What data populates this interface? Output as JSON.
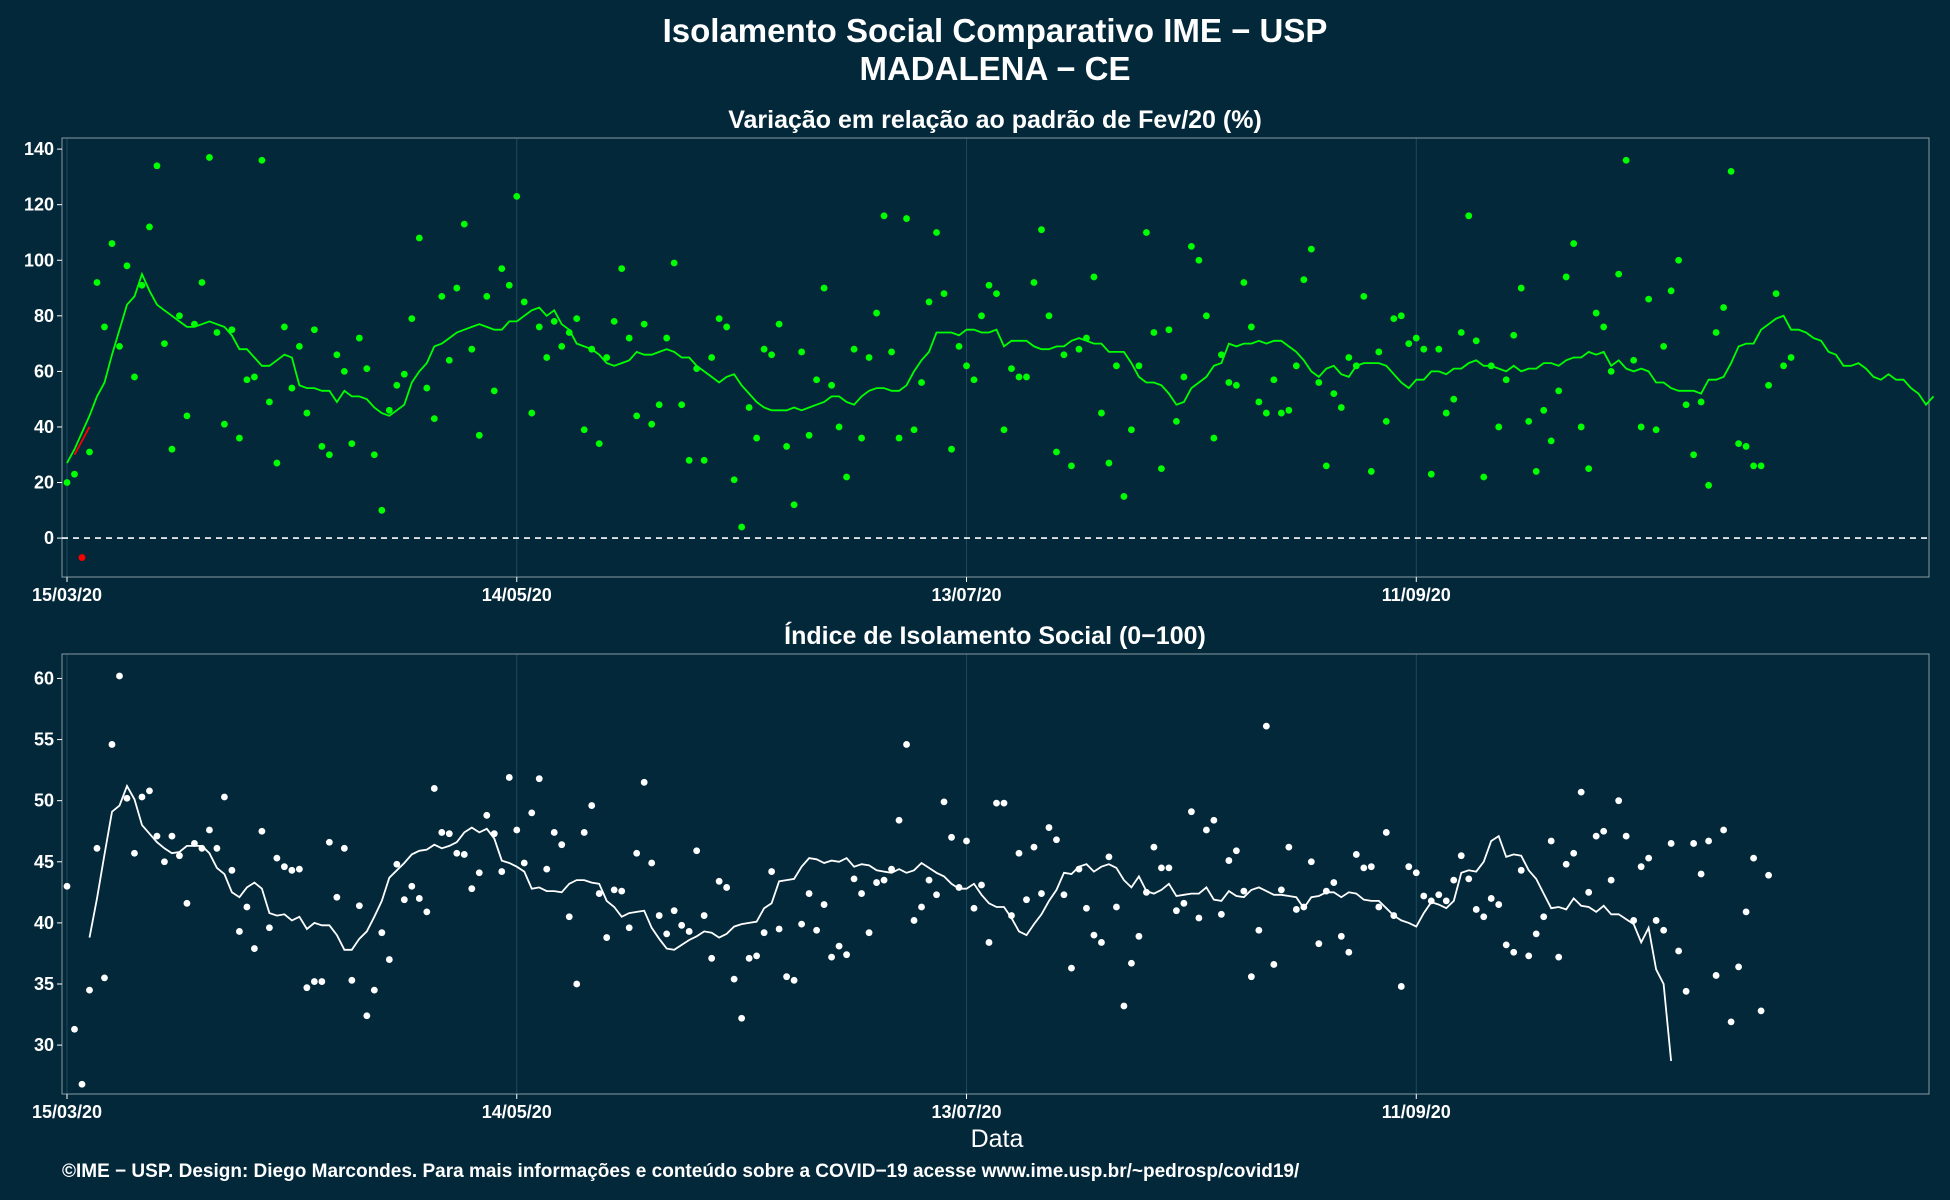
{
  "title": "Isolamento Social Comparativo IME − USP",
  "subtitle": "MADALENA − CE",
  "xlabel": "Data",
  "footer": "©IME − USP. Design: Diego Marcondes. Para mais informações e conteúdo sobre a COVID−19 acesse www.ime.usp.br/~pedrosp/covid19/",
  "colors": {
    "background": "#03283a",
    "green": "#00ff00",
    "white": "#ffffff",
    "red": "#ff0000"
  },
  "chart_data": [
    {
      "type": "scatter",
      "title": "Variação em relação ao padrão de Fev/20 (%)",
      "x_ticks": [
        {
          "offset": 0,
          "label": "15/03/20"
        },
        {
          "offset": 60,
          "label": "14/05/20"
        },
        {
          "offset": 120,
          "label": "13/07/20"
        },
        {
          "offset": 180,
          "label": "11/09/20"
        }
      ],
      "ylim": [
        -14,
        144
      ],
      "y_ticks": [
        0,
        20,
        40,
        60,
        80,
        100,
        120,
        140
      ],
      "reference_line": 0,
      "series": [
        {
          "kind": "points",
          "color": "#00ff00",
          "start_offset": 0,
          "values": [
            20,
            23,
            -7,
            31,
            92,
            76,
            106,
            69,
            98,
            58,
            91,
            112,
            134,
            70,
            32,
            80,
            44,
            77,
            92,
            137,
            74,
            41,
            75,
            36,
            57,
            58,
            136,
            49,
            27,
            76,
            54,
            69,
            45,
            75,
            33,
            30,
            66,
            60,
            34,
            72,
            61,
            30,
            10,
            46,
            55,
            59,
            79,
            108,
            54,
            43,
            87,
            64,
            90,
            113,
            68,
            37,
            87,
            53,
            97,
            91,
            123,
            85,
            45,
            76,
            65,
            78,
            69,
            74,
            79,
            39,
            68,
            34,
            65,
            78,
            97,
            72,
            44,
            77,
            41,
            48,
            72,
            99,
            48,
            28,
            61,
            28,
            65,
            79,
            76,
            21,
            4,
            47,
            36,
            68,
            66,
            77,
            33,
            12,
            67,
            37,
            57,
            90,
            55,
            40,
            22,
            68,
            36,
            65,
            81,
            116,
            67,
            36,
            115,
            39,
            56,
            85,
            110,
            88,
            32,
            69,
            62,
            57,
            80,
            91,
            88,
            39,
            61,
            58,
            58,
            92,
            111,
            80,
            31,
            66,
            26,
            68,
            72,
            94,
            45,
            27,
            62,
            15,
            39,
            62,
            110,
            74,
            25,
            75,
            42,
            58,
            105,
            100,
            80,
            36,
            66,
            56,
            55,
            92,
            76,
            49,
            45,
            57,
            45,
            46,
            62,
            93,
            104,
            56,
            26,
            52,
            47,
            65,
            62,
            87,
            24,
            67,
            42,
            79,
            80,
            70,
            72,
            68,
            23,
            68,
            45,
            50,
            74,
            116,
            71,
            22,
            62,
            40,
            57,
            73,
            90,
            42,
            24,
            46,
            35,
            53,
            94,
            106,
            40,
            25,
            81,
            76,
            60,
            95,
            136,
            64,
            40,
            86,
            39,
            69,
            89,
            100,
            48,
            30,
            49,
            19,
            74,
            83,
            132,
            34,
            33,
            26,
            26,
            55,
            88,
            62,
            65
          ]
        },
        {
          "kind": "points",
          "color": "#ff0000",
          "start_offset": 2,
          "values": [
            -7
          ]
        },
        {
          "kind": "line",
          "color": "#00ff00",
          "start_offset": 0,
          "values": [
            27,
            32,
            38,
            44,
            51,
            56,
            66,
            75,
            84,
            87,
            95,
            89,
            84,
            82,
            80,
            78,
            76,
            76,
            77,
            78,
            77,
            76,
            73,
            68,
            68,
            65,
            62,
            62,
            64,
            66,
            65,
            55,
            54,
            54,
            53,
            53,
            49,
            53,
            51,
            51,
            50,
            47,
            45,
            44,
            46,
            48,
            56,
            60,
            63,
            69,
            70,
            72,
            74,
            75,
            76,
            77,
            76,
            75,
            75,
            78,
            78,
            80,
            82,
            83,
            80,
            82,
            77,
            75,
            70,
            69,
            68,
            66,
            63,
            62,
            63,
            64,
            67,
            66,
            66,
            67,
            68,
            67,
            65,
            65,
            62,
            60,
            58,
            56,
            58,
            59,
            55,
            52,
            49,
            47,
            46,
            46,
            46,
            47,
            46,
            47,
            48,
            49,
            51,
            51,
            49,
            48,
            51,
            53,
            54,
            54,
            53,
            53,
            55,
            60,
            64,
            67,
            74,
            74,
            74,
            73,
            75,
            75,
            74,
            74,
            75,
            69,
            71,
            71,
            71,
            69,
            68,
            68,
            69,
            69,
            71,
            72,
            71,
            70,
            70,
            67,
            67,
            67,
            63,
            58,
            56,
            56,
            55,
            52,
            48,
            49,
            54,
            56,
            58,
            62,
            63,
            70,
            69,
            70,
            70,
            71,
            70,
            71,
            71,
            69,
            67,
            64,
            60,
            58,
            61,
            62,
            59,
            58,
            62,
            63,
            63,
            63,
            62,
            59,
            56,
            54,
            57,
            57,
            60,
            60,
            59,
            61,
            61,
            63,
            64,
            62,
            62,
            61,
            60,
            62,
            60,
            61,
            61,
            63,
            63,
            62,
            64,
            65,
            65,
            67,
            66,
            67,
            62,
            64,
            61,
            60,
            61,
            60,
            56,
            56,
            54,
            53,
            53,
            53,
            52,
            57,
            57,
            58,
            63,
            69,
            70,
            70,
            75,
            77,
            79,
            80,
            75,
            75,
            74,
            72,
            71,
            67,
            66,
            62,
            62,
            63,
            61,
            58,
            57,
            59,
            57,
            57,
            54,
            52,
            48,
            51
          ]
        }
      ]
    },
    {
      "type": "scatter",
      "title": "Índice de Isolamento Social (0−100)",
      "x_ticks": [
        {
          "offset": 0,
          "label": "15/03/20"
        },
        {
          "offset": 60,
          "label": "14/05/20"
        },
        {
          "offset": 120,
          "label": "13/07/20"
        },
        {
          "offset": 180,
          "label": "11/09/20"
        }
      ],
      "ylim": [
        26,
        62
      ],
      "y_ticks": [
        30,
        35,
        40,
        45,
        50,
        55,
        60
      ],
      "series": [
        {
          "kind": "points",
          "color": "#ffffff",
          "start_offset": 0,
          "values": [
            43,
            31.3,
            26.8,
            34.5,
            46.1,
            35.5,
            54.6,
            60.2,
            50.2,
            45.7,
            50.3,
            50.8,
            47.1,
            45,
            47.1,
            45.5,
            41.6,
            46.5,
            46.1,
            47.6,
            46.1,
            50.3,
            44.3,
            39.3,
            41.3,
            37.9,
            47.5,
            39.6,
            45.3,
            44.6,
            44.3,
            44.4,
            34.7,
            35.2,
            35.2,
            46.6,
            42.1,
            46.1,
            35.3,
            41.4,
            32.4,
            34.5,
            39.2,
            37,
            44.8,
            41.9,
            43,
            42,
            40.9,
            51,
            47.4,
            47.3,
            45.7,
            45.6,
            42.8,
            44.1,
            48.8,
            47.3,
            44.2,
            51.9,
            47.6,
            44.9,
            49,
            51.8,
            44.4,
            47.4,
            46.4,
            40.5,
            35,
            47.4,
            49.6,
            42.4,
            38.8,
            42.7,
            42.6,
            39.6,
            45.7,
            51.5,
            44.9,
            40.6,
            39.1,
            41,
            39.8,
            39.3,
            45.9,
            40.6,
            37.1,
            43.4,
            42.9,
            35.4,
            32.2,
            37.1,
            37.3,
            39.2,
            44.2,
            39.5,
            35.6,
            35.3,
            39.9,
            42.4,
            39.4,
            41.5,
            37.2,
            38.1,
            37.4,
            43.6,
            42.4,
            39.2,
            43.3,
            43.5,
            44.4,
            48.4,
            54.6,
            40.2,
            41.3,
            43.5,
            42.3,
            49.9,
            47,
            42.9,
            46.7,
            41.2,
            43.1,
            38.4,
            49.8,
            49.8,
            40.6,
            45.7,
            41.9,
            46.2,
            42.4,
            47.8,
            46.8,
            42.3,
            36.3,
            44.4,
            41.2,
            39,
            38.4,
            45.4,
            41.3,
            33.2,
            36.7,
            38.9,
            42.5,
            46.2,
            44.5,
            44.5,
            41,
            41.6,
            49.1,
            40.4,
            47.6,
            48.4,
            40.7,
            45.1,
            45.9,
            42.6,
            35.6,
            39.4,
            56.1,
            36.6,
            42.7,
            46.2,
            41.1,
            41.3,
            45,
            38.3,
            42.6,
            43.3,
            38.9,
            37.6,
            45.6,
            44.5,
            44.6,
            41.3,
            47.4,
            40.6,
            34.8,
            44.6,
            44.1,
            42.2,
            41.8,
            42.3,
            41.8,
            43.5,
            45.5,
            43.6,
            41.1,
            40.5,
            42,
            41.5,
            38.2,
            37.6,
            44.3,
            37.3,
            39.1,
            40.5,
            46.7,
            37.2,
            44.8,
            45.7,
            50.7,
            42.5,
            47.1,
            47.5,
            43.5,
            50,
            47.1,
            40.2,
            44.6,
            45.3,
            40.2,
            39.4,
            46.5,
            37.7,
            34.4,
            46.5,
            44,
            46.7,
            35.7,
            47.6,
            31.9,
            36.4,
            40.9,
            45.3,
            32.8,
            43.9
          ]
        },
        {
          "kind": "line",
          "color": "#ffffff",
          "start_offset": 3,
          "values": [
            38.8,
            42,
            45.6,
            49.1,
            49.6,
            51.2,
            50.1,
            48,
            47.3,
            46.6,
            46.1,
            45.7,
            45.8,
            46.3,
            46.3,
            46.3,
            45.7,
            44.5,
            44,
            42.5,
            42.1,
            42.9,
            43.3,
            42.8,
            40.8,
            40.6,
            40.7,
            40.2,
            40.5,
            39.5,
            40,
            39.8,
            39.8,
            39,
            37.8,
            37.8,
            38.7,
            39.3,
            40.5,
            41.8,
            43.7,
            44.3,
            44.9,
            45.6,
            45.9,
            46,
            46.4,
            46.1,
            46.3,
            46.6,
            47.4,
            47.8,
            47.4,
            47.7,
            46.9,
            45.1,
            44.9,
            44.6,
            44.2,
            42.8,
            42.9,
            42.6,
            42.6,
            42.5,
            43.2,
            43.5,
            43.5,
            43.3,
            43.2,
            41.8,
            41.3,
            40.5,
            40.8,
            40.9,
            41,
            39.6,
            38.7,
            37.9,
            37.8,
            38.2,
            38.6,
            38.9,
            39.3,
            39.2,
            38.8,
            39.1,
            39.7,
            39.9,
            40,
            40.1,
            41.2,
            41.6,
            43.4,
            43.5,
            43.6,
            44.6,
            45.3,
            45.2,
            44.9,
            45.1,
            45,
            45.3,
            44.6,
            44.8,
            44.7,
            44.3,
            44.2,
            44.1,
            44.4,
            44.1,
            44.3,
            44.9,
            44.5,
            44.1,
            43.8,
            43.2,
            42.8,
            42.8,
            43.2,
            42.3,
            41.6,
            41.3,
            41.3,
            40.4,
            39.3,
            39,
            39.9,
            40.7,
            41.8,
            42.7,
            44.1,
            44,
            44.6,
            44.8,
            44.2,
            44.6,
            44.8,
            44.5,
            43.5,
            42.9,
            43.8,
            42.6,
            42.4,
            42.7,
            43.2,
            42.2,
            42.3,
            42.4,
            42.4,
            42.9,
            41.9,
            41.8,
            42.6,
            42.2,
            42.1,
            42.7,
            42.9,
            42.6,
            42.3,
            42.3,
            42.2,
            42.1,
            41.2,
            42.1,
            42.2,
            42.5,
            42.5,
            42.1,
            42.5,
            42.4,
            41.9,
            41.8,
            41.8,
            41.2,
            40.6,
            40.2,
            40,
            39.7,
            40.8,
            41.7,
            41.5,
            41.2,
            41.8,
            44.1,
            44.3,
            44.2,
            45,
            46.7,
            47.1,
            45.4,
            45.6,
            45.5,
            44.3,
            43.6,
            42.4,
            41.2,
            41.3,
            41.1,
            42,
            41.4,
            41.3,
            40.9,
            41.4,
            40.7,
            40.7,
            40.3,
            39.9,
            38.4,
            39.6,
            36.2,
            35,
            28.7
          ]
        }
      ]
    }
  ]
}
